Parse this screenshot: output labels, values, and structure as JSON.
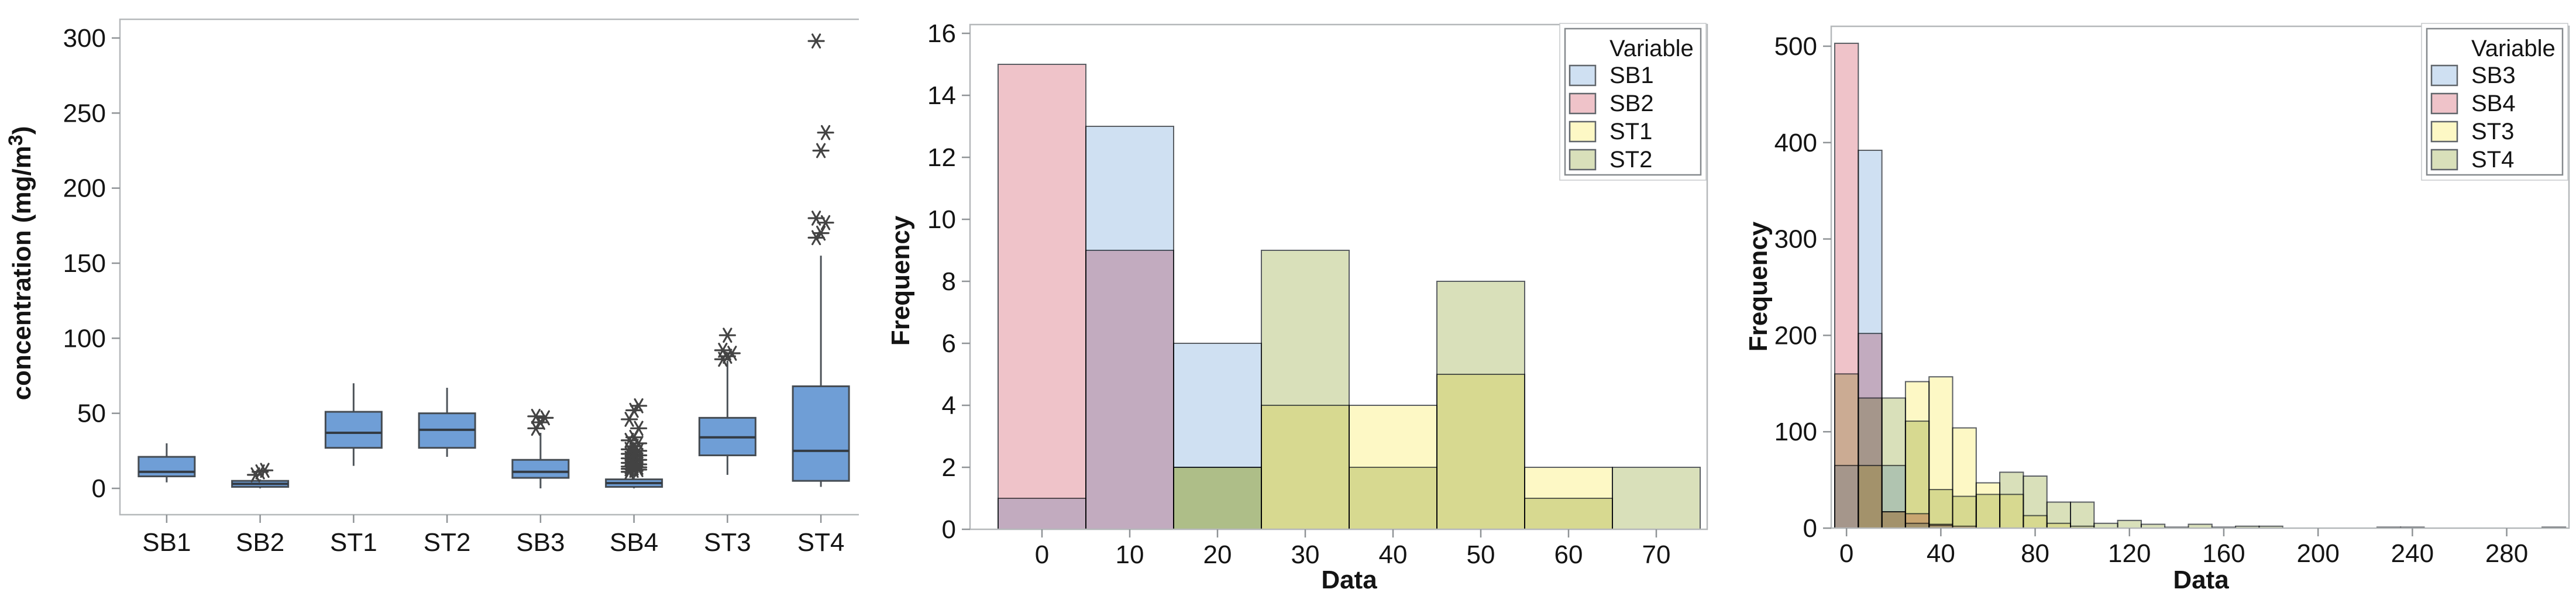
{
  "figure": {
    "background": "#ffffff",
    "frame_color": "#b5b8ba",
    "tick_color": "#8f9396",
    "text_color": "#141414"
  },
  "chart_data": [
    {
      "type": "boxplot",
      "title": "",
      "xlabel": "",
      "ylabel": "concentration (mg/m³)",
      "y_ticks": [
        0,
        50,
        100,
        150,
        200,
        250,
        300
      ],
      "ylim": [
        0,
        300
      ],
      "grid": false,
      "box_fill": "#6f9ed6",
      "box_stroke": "#454c53",
      "whisker_stroke": "#4e545a",
      "median_stroke": "#333b44",
      "outlier_color": "#434343",
      "categories": [
        "SB1",
        "SB2",
        "ST1",
        "ST2",
        "SB3",
        "SB4",
        "ST3",
        "ST4"
      ],
      "boxes": [
        {
          "label": "SB1",
          "whisker_low": 4,
          "q1": 8,
          "median": 11,
          "q3": 21,
          "whisker_high": 30,
          "outliers": []
        },
        {
          "label": "SB2",
          "whisker_low": 0,
          "q1": 1,
          "median": 3,
          "q3": 5,
          "whisker_high": 6,
          "outliers": [
            9,
            11,
            12
          ]
        },
        {
          "label": "ST1",
          "whisker_low": 15,
          "q1": 27,
          "median": 37,
          "q3": 51,
          "whisker_high": 70,
          "outliers": []
        },
        {
          "label": "ST2",
          "whisker_low": 21,
          "q1": 27,
          "median": 39,
          "q3": 50,
          "whisker_high": 67,
          "outliers": []
        },
        {
          "label": "SB3",
          "whisker_low": 0,
          "q1": 7,
          "median": 11,
          "q3": 19,
          "whisker_high": 37,
          "outliers": [
            40,
            44,
            47,
            48
          ]
        },
        {
          "label": "SB4",
          "whisker_low": 0,
          "q1": 1,
          "median": 3.5,
          "q3": 6,
          "whisker_high": 10,
          "outliers": [
            11,
            12,
            12.5,
            13,
            13.5,
            14,
            14.5,
            15,
            16,
            17,
            18,
            19,
            20,
            21,
            22,
            23,
            24,
            25,
            26,
            28,
            30,
            32,
            34,
            40,
            46,
            52,
            55
          ]
        },
        {
          "label": "ST3",
          "whisker_low": 9,
          "q1": 22,
          "median": 34,
          "q3": 47,
          "whisker_high": 85,
          "outliers": [
            86,
            88,
            90,
            92,
            102
          ]
        },
        {
          "label": "ST4",
          "whisker_low": 1,
          "q1": 5,
          "median": 25,
          "q3": 68,
          "whisker_high": 155,
          "outliers": [
            167,
            170,
            177,
            180,
            225,
            237,
            298
          ]
        }
      ]
    },
    {
      "type": "histogram",
      "overlay": true,
      "title": "",
      "xlabel": "Data",
      "ylabel": "Frequency",
      "legend_title": "Variable",
      "legend_position": "top-right",
      "bin_start": -5,
      "bin_width": 10,
      "x_ticks": [
        0,
        10,
        20,
        30,
        40,
        50,
        60,
        70
      ],
      "y_ticks": [
        0,
        2,
        4,
        6,
        8,
        10,
        12,
        14,
        16
      ],
      "xlim": [
        -5,
        75
      ],
      "ylim": [
        0,
        16
      ],
      "grid": false,
      "bar_stroke": "#5a5e63",
      "series": [
        {
          "name": "SB1",
          "color": "#cfe0f2",
          "values": [
            1,
            13,
            6,
            0,
            0,
            0,
            0,
            0
          ]
        },
        {
          "name": "SB2",
          "color": "#efc3c9",
          "values": [
            15,
            9,
            0,
            0,
            0,
            0,
            0,
            0
          ]
        },
        {
          "name": "ST1",
          "color": "#fdf8c5",
          "values": [
            0,
            0,
            2,
            4,
            4,
            5,
            2,
            0
          ]
        },
        {
          "name": "ST2",
          "color": "#d9e0ba",
          "values": [
            0,
            0,
            2,
            9,
            2,
            8,
            1,
            2
          ]
        }
      ]
    },
    {
      "type": "histogram",
      "overlay": true,
      "title": "",
      "xlabel": "Data",
      "ylabel": "Frequency",
      "legend_title": "Variable",
      "legend_position": "top-right",
      "bin_start": -5,
      "bin_width": 10,
      "x_ticks": [
        0,
        40,
        80,
        120,
        160,
        200,
        240,
        280
      ],
      "y_ticks": [
        0,
        100,
        200,
        300,
        400,
        500
      ],
      "xlim": [
        -5,
        305
      ],
      "ylim": [
        0,
        500
      ],
      "grid": false,
      "bar_stroke": "#5a5e63",
      "series": [
        {
          "name": "SB3",
          "color": "#cfe0f2",
          "values": [
            65,
            392,
            65,
            5,
            3,
            0,
            0,
            0,
            0,
            0,
            0,
            0,
            0,
            0,
            0,
            0,
            0,
            0,
            0,
            0,
            0,
            0,
            0,
            0,
            0,
            0,
            0,
            0,
            0,
            0,
            0
          ]
        },
        {
          "name": "SB4",
          "color": "#efc3c9",
          "values": [
            503,
            202,
            17,
            15,
            4,
            2,
            0,
            0,
            0,
            0,
            0,
            0,
            0,
            0,
            0,
            0,
            0,
            0,
            0,
            0,
            0,
            0,
            0,
            0,
            0,
            0,
            0,
            0,
            0,
            0,
            0
          ]
        },
        {
          "name": "ST3",
          "color": "#fdf8c5",
          "values": [
            0,
            65,
            17,
            152,
            157,
            104,
            47,
            35,
            13,
            5,
            2,
            0,
            0,
            0,
            0,
            0,
            0,
            0,
            0,
            0,
            0,
            0,
            0,
            0,
            0,
            0,
            0,
            0,
            0,
            0,
            0
          ]
        },
        {
          "name": "ST4",
          "color": "#d9e0ba",
          "values": [
            160,
            135,
            135,
            111,
            40,
            33,
            35,
            58,
            54,
            27,
            27,
            5,
            8,
            4,
            1,
            4,
            1,
            2,
            2,
            0,
            0,
            0,
            0,
            1,
            1,
            0,
            0,
            0,
            0,
            0,
            1
          ]
        }
      ]
    }
  ]
}
